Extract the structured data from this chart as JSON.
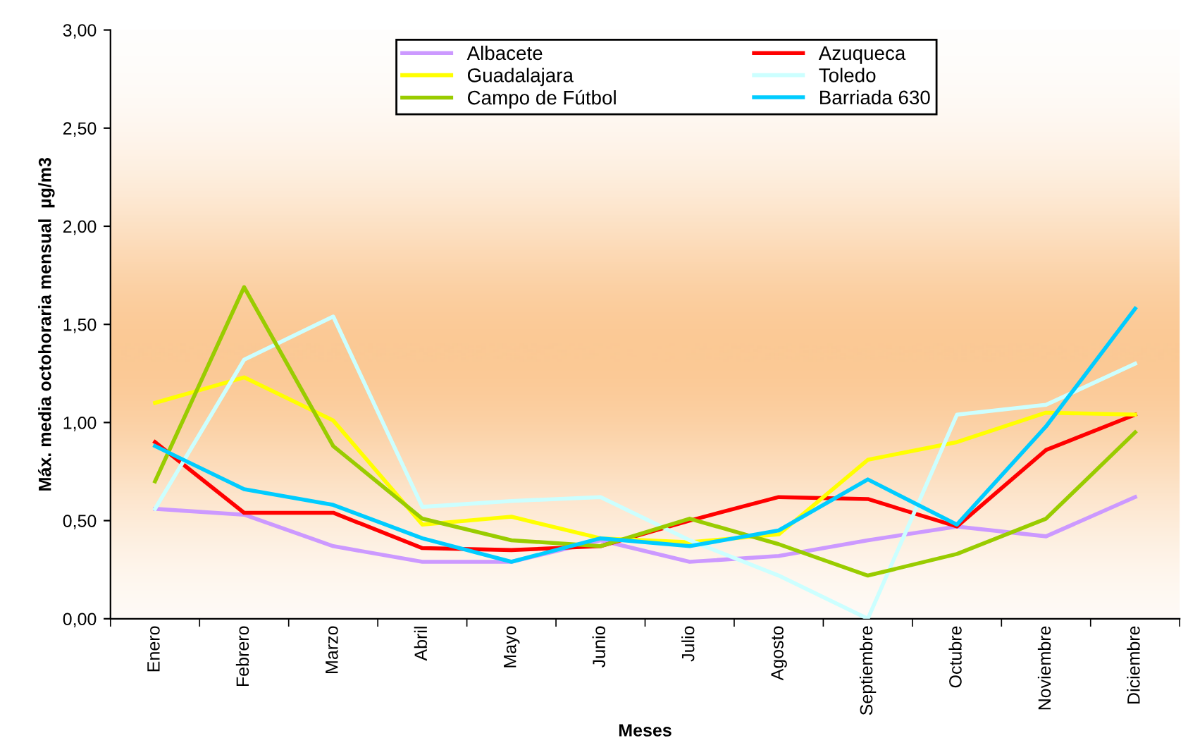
{
  "chart_data": {
    "type": "line",
    "xlabel": "Meses",
    "ylabel": "Máx. media octohoraria mensual  µg/m3",
    "categories": [
      "Enero",
      "Febrero",
      "Marzo",
      "Abril",
      "Mayo",
      "Junio",
      "Julio",
      "Agosto",
      "Septiembre",
      "Octubre",
      "Noviembre",
      "Diciembre"
    ],
    "series": [
      {
        "name": "Albacete",
        "color": "#cc99ff",
        "values": [
          0.56,
          0.53,
          0.37,
          0.29,
          0.29,
          0.4,
          0.29,
          0.32,
          0.4,
          0.47,
          0.42,
          0.62
        ]
      },
      {
        "name": "Azuqueca",
        "color": "#ff0000",
        "values": [
          0.9,
          0.54,
          0.54,
          0.36,
          0.35,
          0.37,
          0.5,
          0.62,
          0.61,
          0.47,
          0.86,
          1.04
        ]
      },
      {
        "name": "Guadalajara",
        "color": "#ffff00",
        "values": [
          1.1,
          1.23,
          1.01,
          0.48,
          0.52,
          0.41,
          0.39,
          0.43,
          0.81,
          0.9,
          1.05,
          1.04
        ]
      },
      {
        "name": "Toledo",
        "color": "#ccffff",
        "values": [
          0.56,
          1.32,
          1.54,
          0.57,
          0.6,
          0.62,
          0.4,
          0.22,
          0.0,
          1.04,
          1.09,
          1.3
        ]
      },
      {
        "name": "Campo de Fútbol",
        "color": "#99cc00",
        "values": [
          0.7,
          1.69,
          0.88,
          0.51,
          0.4,
          0.37,
          0.51,
          0.38,
          0.22,
          0.33,
          0.51,
          0.95
        ]
      },
      {
        "name": "Barriada 630",
        "color": "#00ccff",
        "values": [
          0.88,
          0.66,
          0.58,
          0.41,
          0.29,
          0.41,
          0.37,
          0.45,
          0.71,
          0.48,
          0.98,
          1.58
        ]
      }
    ],
    "ylim": [
      0,
      3
    ],
    "yticks": [
      {
        "value": 0,
        "label": "0,00"
      },
      {
        "value": 0.5,
        "label": "0,50"
      },
      {
        "value": 1,
        "label": "1,00"
      },
      {
        "value": 1.5,
        "label": "1,50"
      },
      {
        "value": 2,
        "label": "2,00"
      },
      {
        "value": 2.5,
        "label": "2,50"
      },
      {
        "value": 3,
        "label": "3,00"
      }
    ],
    "legend": "top",
    "grid": false,
    "marker": "none",
    "line_style": "solid"
  }
}
